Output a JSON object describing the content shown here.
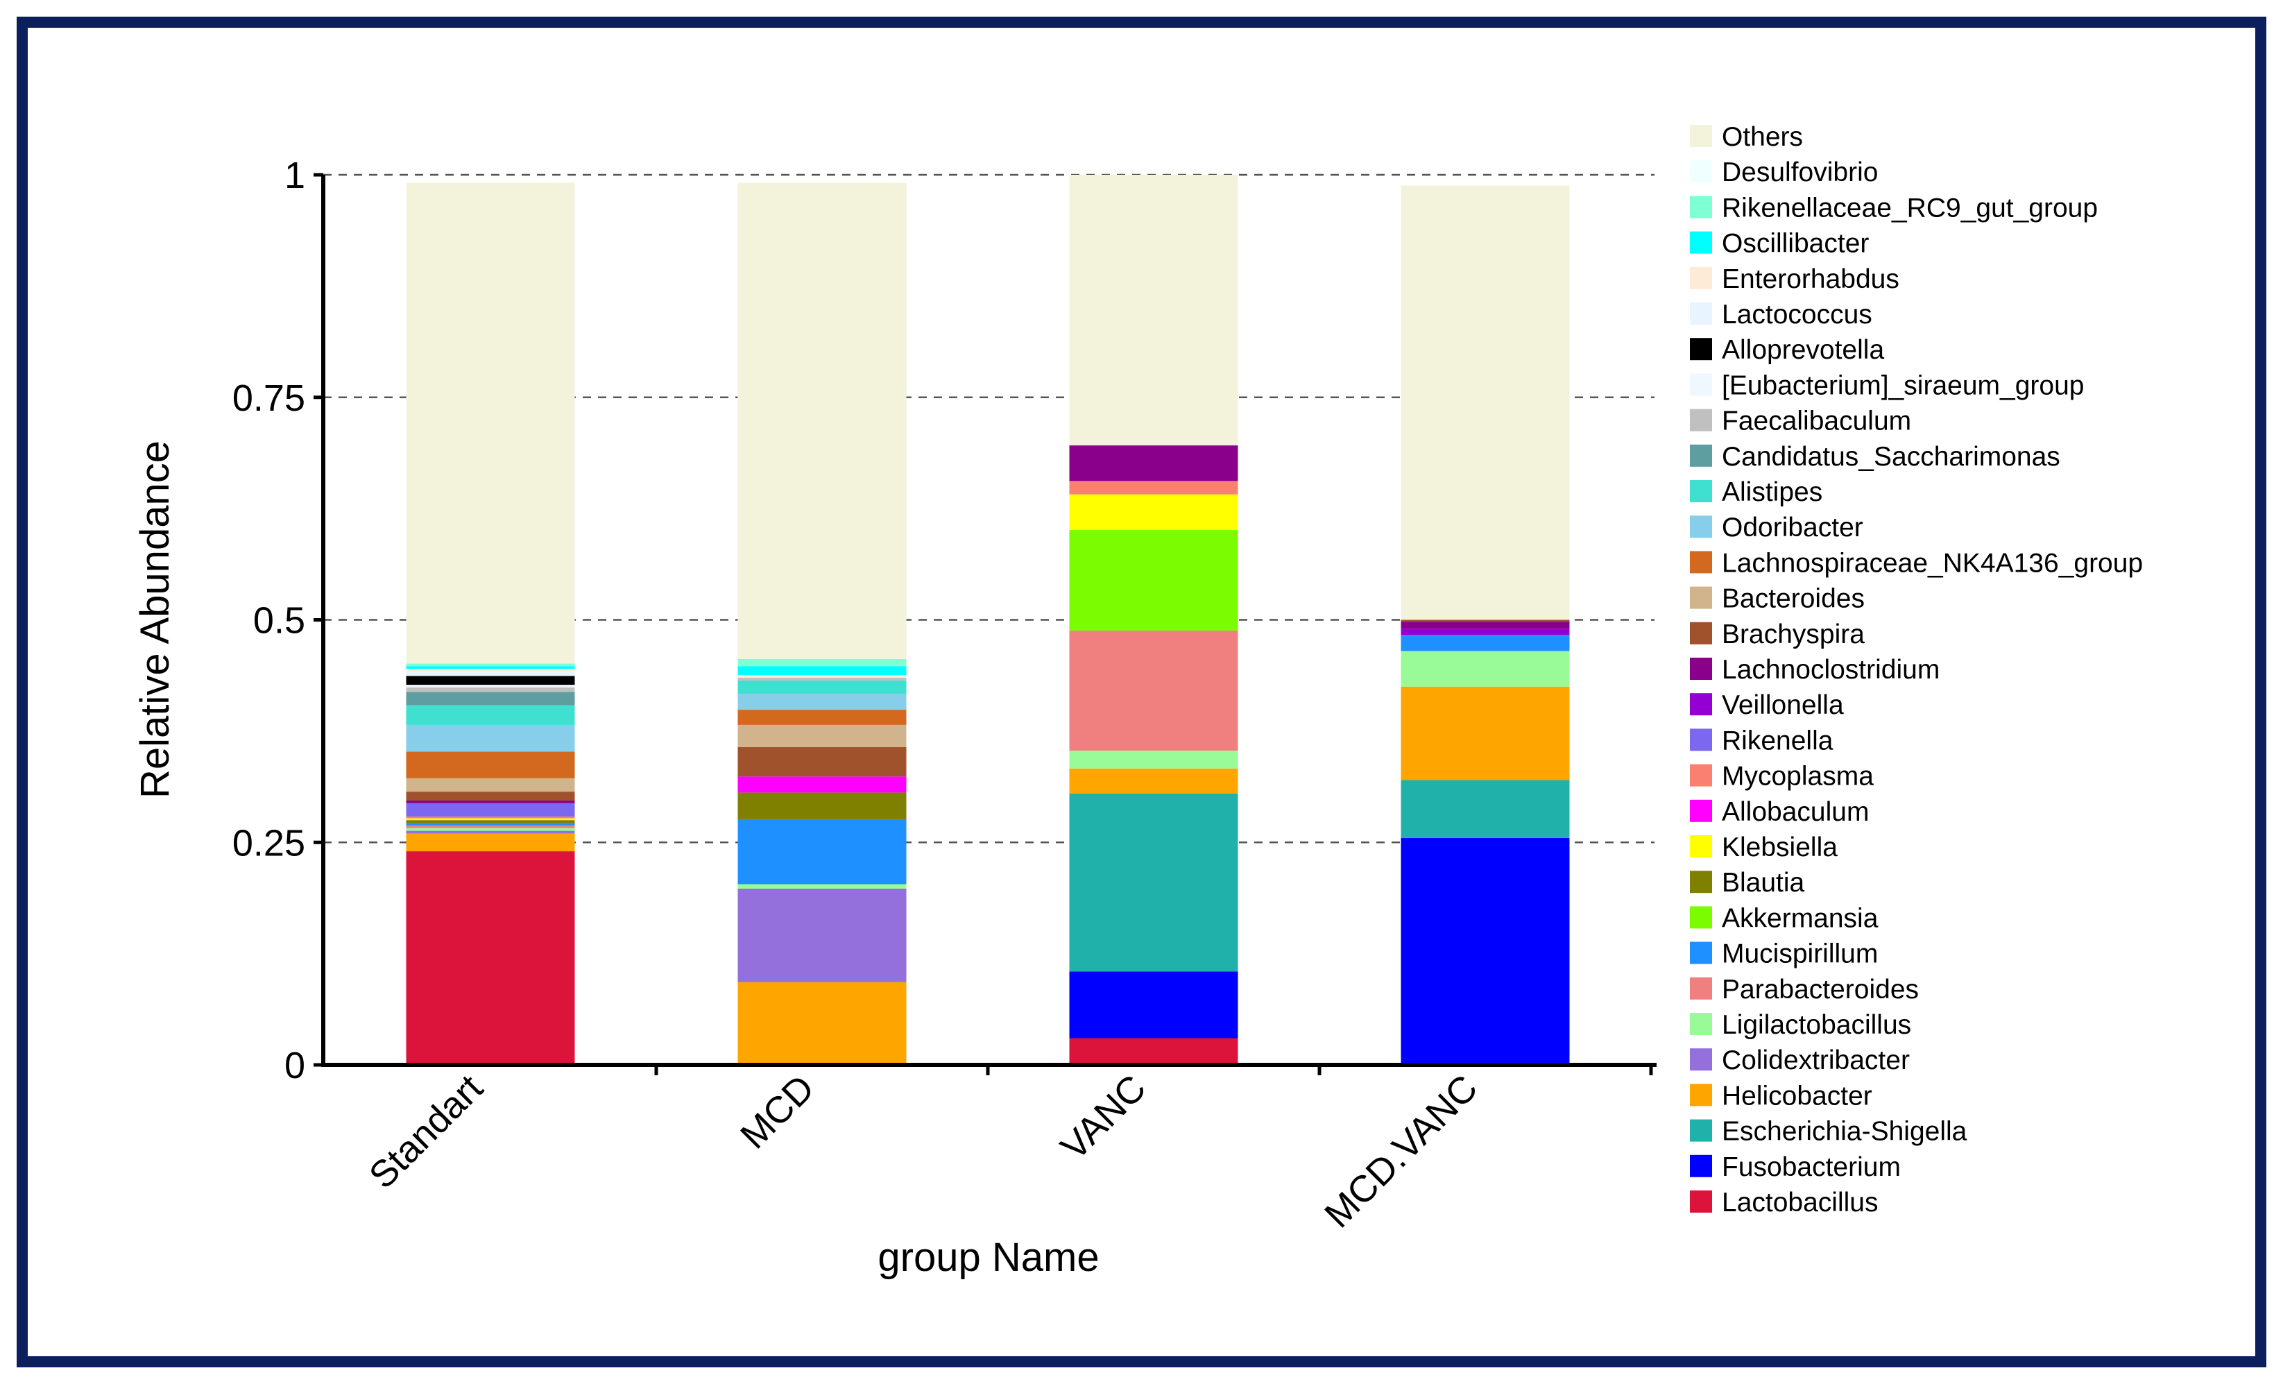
{
  "chart_data": {
    "type": "bar",
    "stacked": true,
    "title": "",
    "xlabel": "group Name",
    "ylabel": "Relative Abundance",
    "ylim": [
      0,
      1
    ],
    "yticks": [
      0,
      0.25,
      0.5,
      0.75,
      1
    ],
    "ytick_labels": [
      "0",
      "0.25",
      "0.5",
      "0.75",
      "1"
    ],
    "grid": "dashed-horizontal",
    "legend_position": "right",
    "categories": [
      "Standart",
      "MCD",
      "VANC",
      "MCD.VANC"
    ],
    "series": [
      {
        "name": "Lactobacillus",
        "color": "#dc143c",
        "values": [
          0.24,
          0.0,
          0.03,
          0.0
        ]
      },
      {
        "name": "Fusobacterium",
        "color": "#0000ff",
        "values": [
          0.0,
          0.0,
          0.075,
          0.255
        ]
      },
      {
        "name": "Escherichia-Shigella",
        "color": "#20b2aa",
        "values": [
          0.0,
          0.0,
          0.2,
          0.065
        ]
      },
      {
        "name": "Helicobacter",
        "color": "#ffa500",
        "values": [
          0.02,
          0.093,
          0.028,
          0.105
        ]
      },
      {
        "name": "Colidextribacter",
        "color": "#9370db",
        "values": [
          0.003,
          0.105,
          0.0,
          0.0
        ]
      },
      {
        "name": "Ligilactobacillus",
        "color": "#98fb98",
        "values": [
          0.003,
          0.005,
          0.02,
          0.04
        ]
      },
      {
        "name": "Parabacteroides",
        "color": "#f08080",
        "values": [
          0.003,
          0.0,
          0.135,
          0.0
        ]
      },
      {
        "name": "Mucispirillum",
        "color": "#1e90ff",
        "values": [
          0.003,
          0.073,
          0.0,
          0.018
        ]
      },
      {
        "name": "Akkermansia",
        "color": "#7cfc00",
        "values": [
          0.0,
          0.0,
          0.113,
          0.0
        ]
      },
      {
        "name": "Blautia",
        "color": "#808000",
        "values": [
          0.003,
          0.03,
          0.0,
          0.0
        ]
      },
      {
        "name": "Klebsiella",
        "color": "#ffff00",
        "values": [
          0.002,
          0.0,
          0.04,
          0.0
        ]
      },
      {
        "name": "Allobaculum",
        "color": "#ff00ff",
        "values": [
          0.0,
          0.018,
          0.0,
          0.0
        ]
      },
      {
        "name": "Mycoplasma",
        "color": "#fa8072",
        "values": [
          0.002,
          0.0,
          0.015,
          0.0
        ]
      },
      {
        "name": "Rikenella",
        "color": "#7b68ee",
        "values": [
          0.015,
          0.0,
          0.0,
          0.0
        ]
      },
      {
        "name": "Veillonella",
        "color": "#9400d3",
        "values": [
          0.0,
          0.0,
          0.0,
          0.007
        ]
      },
      {
        "name": "Lachnoclostridium",
        "color": "#8b008b",
        "values": [
          0.003,
          0.0,
          0.04,
          0.008
        ]
      },
      {
        "name": "Brachyspira",
        "color": "#a0522d",
        "values": [
          0.01,
          0.033,
          0.0,
          0.002
        ]
      },
      {
        "name": "Bacteroides",
        "color": "#d2b48c",
        "values": [
          0.015,
          0.025,
          0.0,
          0.0
        ]
      },
      {
        "name": "Lachnospiraceae_NK4A136_group",
        "color": "#d2691e",
        "values": [
          0.03,
          0.017,
          0.0,
          0.0
        ]
      },
      {
        "name": "Odoribacter",
        "color": "#87ceeb",
        "values": [
          0.03,
          0.018,
          0.0,
          0.0
        ]
      },
      {
        "name": "Alistipes",
        "color": "#40e0d0",
        "values": [
          0.022,
          0.015,
          0.0,
          0.0
        ]
      },
      {
        "name": "Candidatus_Saccharimonas",
        "color": "#5f9ea0",
        "values": [
          0.015,
          0.0,
          0.0,
          0.0
        ]
      },
      {
        "name": "Faecalibaculum",
        "color": "#c0c0c0",
        "values": [
          0.005,
          0.003,
          0.0,
          0.0
        ]
      },
      {
        "name": "[Eubacterium]_siraeum_group",
        "color": "#f0f8ff",
        "values": [
          0.003,
          0.0,
          0.0,
          0.0
        ]
      },
      {
        "name": "Alloprevotella",
        "color": "#000000",
        "values": [
          0.01,
          0.0,
          0.0,
          0.0
        ]
      },
      {
        "name": "Lactococcus",
        "color": "#e8f4ff",
        "values": [
          0.005,
          0.0,
          0.0,
          0.0
        ]
      },
      {
        "name": "Enterorhabdus",
        "color": "#fdebd8",
        "values": [
          0.003,
          0.003,
          0.0,
          0.0
        ]
      },
      {
        "name": "Oscillibacter",
        "color": "#00ffff",
        "values": [
          0.003,
          0.01,
          0.0,
          0.0
        ]
      },
      {
        "name": "Rikenellaceae_RC9_gut_group",
        "color": "#7fffd4",
        "values": [
          0.003,
          0.008,
          0.0,
          0.0
        ]
      },
      {
        "name": "Desulfovibrio",
        "color": "#f0ffff",
        "values": [
          0.0,
          0.0,
          0.0,
          0.0
        ]
      },
      {
        "name": "Others",
        "color": "#f3f3dc",
        "values": [
          0.54,
          0.535,
          0.304,
          0.488
        ]
      }
    ],
    "legend_order": [
      "Others",
      "Desulfovibrio",
      "Rikenellaceae_RC9_gut_group",
      "Oscillibacter",
      "Enterorhabdus",
      "Lactococcus",
      "Alloprevotella",
      "[Eubacterium]_siraeum_group",
      "Faecalibaculum",
      "Candidatus_Saccharimonas",
      "Alistipes",
      "Odoribacter",
      "Lachnospiraceae_NK4A136_group",
      "Bacteroides",
      "Brachyspira",
      "Lachnoclostridium",
      "Veillonella",
      "Rikenella",
      "Mycoplasma",
      "Allobaculum",
      "Klebsiella",
      "Blautia",
      "Akkermansia",
      "Mucispirillum",
      "Parabacteroides",
      "Ligilactobacillus",
      "Colidextribacter",
      "Helicobacter",
      "Escherichia-Shigella",
      "Fusobacterium",
      "Lactobacillus"
    ]
  }
}
